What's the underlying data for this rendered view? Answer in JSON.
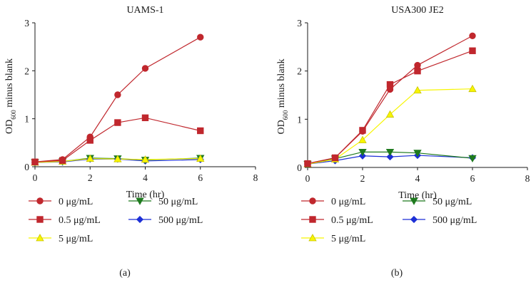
{
  "chart_data": [
    {
      "type": "line",
      "title": "UAMS-1",
      "panel_label": "(a)",
      "xlabel": "Time (hr)",
      "ylabel_main": "OD",
      "ylabel_sub": "600",
      "ylabel_rest": " minus blank",
      "xlim": [
        0,
        8
      ],
      "ylim": [
        0,
        3
      ],
      "xticks": [
        "0",
        "2",
        "4",
        "6",
        "8"
      ],
      "yticks": [
        "0",
        "1",
        "2",
        "3"
      ],
      "x": [
        0,
        1,
        2,
        3,
        4,
        6
      ],
      "series": [
        {
          "name": "0 μg/mL",
          "color": "#c0272d",
          "marker": "circle",
          "values": [
            0.1,
            0.15,
            0.62,
            1.5,
            2.05,
            2.7
          ]
        },
        {
          "name": "0.5 μg/mL",
          "color": "#c0272d",
          "marker": "square",
          "values": [
            0.1,
            0.13,
            0.55,
            0.92,
            1.02,
            0.75
          ]
        },
        {
          "name": "5 μg/mL",
          "color": "#f7f500",
          "marker": "triangle",
          "values": [
            0.09,
            0.11,
            0.17,
            0.16,
            0.15,
            0.17
          ]
        },
        {
          "name": "50 μg/mL",
          "color": "#1e7a1e",
          "marker": "tridown",
          "values": [
            0.09,
            0.11,
            0.18,
            0.17,
            0.14,
            0.18
          ]
        },
        {
          "name": "500 μg/mL",
          "color": "#1c2fd6",
          "marker": "diamond",
          "values": [
            0.09,
            0.1,
            0.16,
            0.16,
            0.12,
            0.15
          ]
        }
      ]
    },
    {
      "type": "line",
      "title": "USA300 JE2",
      "panel_label": "(b)",
      "xlabel": "Time (hr)",
      "ylabel_main": "OD",
      "ylabel_sub": "600",
      "ylabel_rest": " minus blank",
      "xlim": [
        0,
        8
      ],
      "ylim": [
        0,
        3
      ],
      "xticks": [
        "0",
        "2",
        "4",
        "6",
        "8"
      ],
      "yticks": [
        "0",
        "1",
        "2",
        "3"
      ],
      "x": [
        0,
        1,
        2,
        3,
        4,
        6
      ],
      "series": [
        {
          "name": "0 μg/mL",
          "color": "#c0272d",
          "marker": "circle",
          "values": [
            0.08,
            0.2,
            0.75,
            1.62,
            2.12,
            2.73
          ]
        },
        {
          "name": "0.5 μg/mL",
          "color": "#c0272d",
          "marker": "square",
          "values": [
            0.08,
            0.2,
            0.77,
            1.72,
            2.0,
            2.42
          ]
        },
        {
          "name": "5 μg/mL",
          "color": "#f7f500",
          "marker": "triangle",
          "values": [
            0.07,
            0.17,
            0.57,
            1.1,
            1.6,
            1.63
          ]
        },
        {
          "name": "50 μg/mL",
          "color": "#1e7a1e",
          "marker": "tridown",
          "values": [
            0.07,
            0.18,
            0.32,
            0.32,
            0.3,
            0.19
          ]
        },
        {
          "name": "500 μg/mL",
          "color": "#1c2fd6",
          "marker": "diamond",
          "values": [
            0.07,
            0.14,
            0.24,
            0.22,
            0.25,
            0.2
          ]
        }
      ]
    }
  ]
}
